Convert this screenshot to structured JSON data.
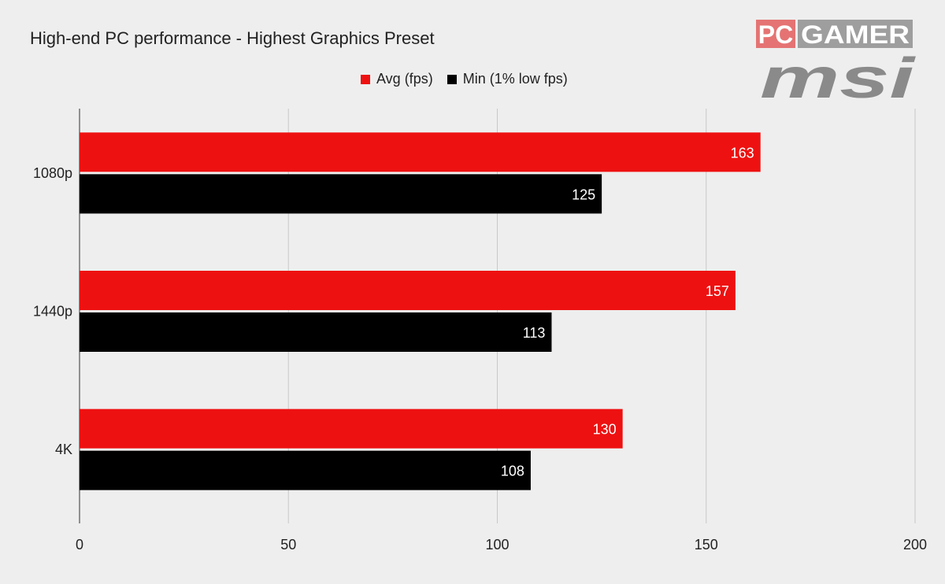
{
  "chart_data": {
    "type": "bar",
    "orientation": "horizontal",
    "title": "High-end PC performance - Highest Graphics Preset",
    "categories": [
      "1080p",
      "1440p",
      "4K"
    ],
    "series": [
      {
        "name": "Avg (fps)",
        "color": "#ee1111",
        "values": [
          163,
          157,
          130
        ]
      },
      {
        "name": "Min (1% low fps)",
        "color": "#000000",
        "values": [
          125,
          113,
          108
        ]
      }
    ],
    "xlim": [
      0,
      200
    ],
    "xticks": [
      0,
      50,
      100,
      150,
      200
    ],
    "xlabel": "",
    "ylabel": "",
    "grid": true,
    "legend_position": "top"
  },
  "branding": {
    "publisher_logo": "PC GAMER",
    "sponsor_logo": "msi",
    "logo_colors": {
      "pc_box": "#e57373",
      "gamer_box": "#9e9e9e",
      "msi": "#8a8a8a"
    }
  }
}
